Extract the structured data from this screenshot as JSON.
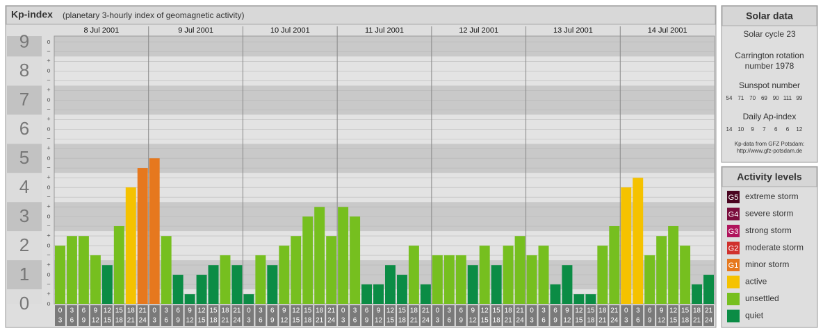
{
  "header": {
    "title": "Kp-index",
    "subtitle": "(planetary 3-hourly index of geomagnetic activity)"
  },
  "chart_data": {
    "type": "bar",
    "days": [
      "8 Jul 2001",
      "9 Jul 2001",
      "10 Jul 2001",
      "11 Jul 2001",
      "12 Jul 2001",
      "13 Jul 2001",
      "14 Jul 2001"
    ],
    "hour_ranges": [
      [
        0,
        3
      ],
      [
        3,
        6
      ],
      [
        6,
        9
      ],
      [
        9,
        12
      ],
      [
        12,
        15
      ],
      [
        15,
        18
      ],
      [
        18,
        21
      ],
      [
        21,
        24
      ]
    ],
    "values": [
      2,
      2.33,
      2.33,
      1.67,
      1.33,
      2.67,
      4,
      4.67,
      5,
      2.33,
      1,
      0.33,
      1,
      1.33,
      1.67,
      1.33,
      0.33,
      1.67,
      1.33,
      2,
      2.33,
      3,
      3.33,
      2.33,
      3.33,
      3,
      0.67,
      0.67,
      1.33,
      1,
      2,
      0.67,
      1.67,
      1.67,
      1.67,
      1.33,
      2,
      1.33,
      2,
      2.33,
      1.67,
      2,
      0.67,
      1.33,
      0.33,
      0.33,
      2,
      2.67,
      4,
      4.33,
      1.67,
      2.33,
      2.67,
      2,
      0.67,
      1
    ],
    "colors": [
      "#76bf1f",
      "#76bf1f",
      "#76bf1f",
      "#76bf1f",
      "#0b8c45",
      "#76bf1f",
      "#f5c200",
      "#e6781e",
      "#e6781e",
      "#76bf1f",
      "#0b8c45",
      "#0b8c45",
      "#0b8c45",
      "#0b8c45",
      "#76bf1f",
      "#0b8c45",
      "#0b8c45",
      "#76bf1f",
      "#0b8c45",
      "#76bf1f",
      "#76bf1f",
      "#76bf1f",
      "#76bf1f",
      "#76bf1f",
      "#76bf1f",
      "#76bf1f",
      "#0b8c45",
      "#0b8c45",
      "#0b8c45",
      "#0b8c45",
      "#76bf1f",
      "#0b8c45",
      "#76bf1f",
      "#76bf1f",
      "#76bf1f",
      "#0b8c45",
      "#76bf1f",
      "#0b8c45",
      "#76bf1f",
      "#76bf1f",
      "#76bf1f",
      "#76bf1f",
      "#0b8c45",
      "#0b8c45",
      "#0b8c45",
      "#0b8c45",
      "#76bf1f",
      "#76bf1f",
      "#f5c200",
      "#f5c200",
      "#76bf1f",
      "#76bf1f",
      "#76bf1f",
      "#76bf1f",
      "#0b8c45",
      "#0b8c45"
    ],
    "ylim": [
      0,
      9.2
    ],
    "yticks": [
      0,
      1,
      2,
      3,
      4,
      5,
      6,
      7,
      8,
      9
    ],
    "subtick_labels": [
      "−",
      "o",
      "+"
    ],
    "grid": true
  },
  "solar_data": {
    "title": "Solar data",
    "cycle": "Solar cycle 23",
    "carrington": [
      "Carrington rotation",
      "number 1978"
    ],
    "sunspot_title": "Sunspot number",
    "sunspot": [
      54,
      71,
      70,
      69,
      90,
      111,
      99
    ],
    "ap_title": "Daily Ap-index",
    "ap": [
      14,
      10,
      9,
      7,
      6,
      6,
      12
    ],
    "source": [
      "Kp-data from GFZ Potsdam:",
      "http://www.gfz-potsdam.de"
    ]
  },
  "activity_levels": {
    "title": "Activity levels",
    "items": [
      {
        "badge": "G5",
        "name": "extreme storm",
        "color": "#4a0420"
      },
      {
        "badge": "G4",
        "name": "severe storm",
        "color": "#7a0c3c"
      },
      {
        "badge": "G3",
        "name": "strong storm",
        "color": "#b0145c"
      },
      {
        "badge": "G2",
        "name": "moderate storm",
        "color": "#d0312d"
      },
      {
        "badge": "G1",
        "name": "minor storm",
        "color": "#e6781e"
      },
      {
        "name": "active",
        "color": "#f5c200"
      },
      {
        "name": "unsettled",
        "color": "#76bf1f"
      },
      {
        "name": "quiet",
        "color": "#0b8c45"
      }
    ]
  }
}
